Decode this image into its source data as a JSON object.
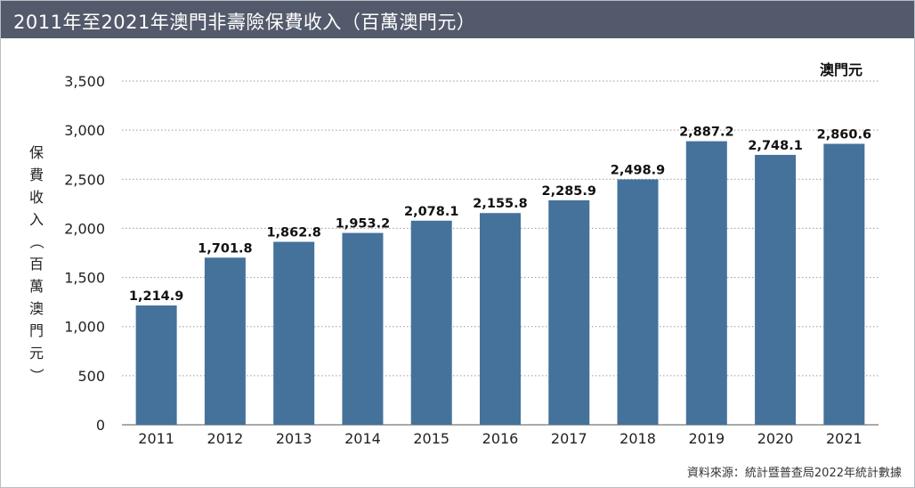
{
  "title": "2011年至2021年澳門非壽險保費收入（百萬澳門元）",
  "unit_label": "澳門元",
  "source": "資料來源：統計暨普查局2022年統計數據",
  "chart_data": {
    "type": "bar",
    "title": "2011年至2021年澳門非壽險保費收入（百萬澳門元）",
    "xlabel": "",
    "ylabel": "保費收入（百萬澳門元）",
    "categories": [
      "2011",
      "2012",
      "2013",
      "2014",
      "2015",
      "2016",
      "2017",
      "2018",
      "2019",
      "2020",
      "2021"
    ],
    "values": [
      1214.9,
      1701.8,
      1862.8,
      1953.2,
      2078.1,
      2155.8,
      2285.9,
      2498.9,
      2887.2,
      2748.1,
      2860.6
    ],
    "value_labels": [
      "1,214.9",
      "1,701.8",
      "1,862.8",
      "1,953.2",
      "2,078.1",
      "2,155.8",
      "2,285.9",
      "2,498.9",
      "2,887.2",
      "2,748.1",
      "2,860.6"
    ],
    "ylim": [
      0,
      3500
    ],
    "yticks": [
      "0",
      "500",
      "1,000",
      "1,500",
      "2,000",
      "2,500",
      "3,000",
      "3,500"
    ],
    "grid": true,
    "bar_color": "#44729b",
    "grid_color": "#9a9a9a"
  }
}
